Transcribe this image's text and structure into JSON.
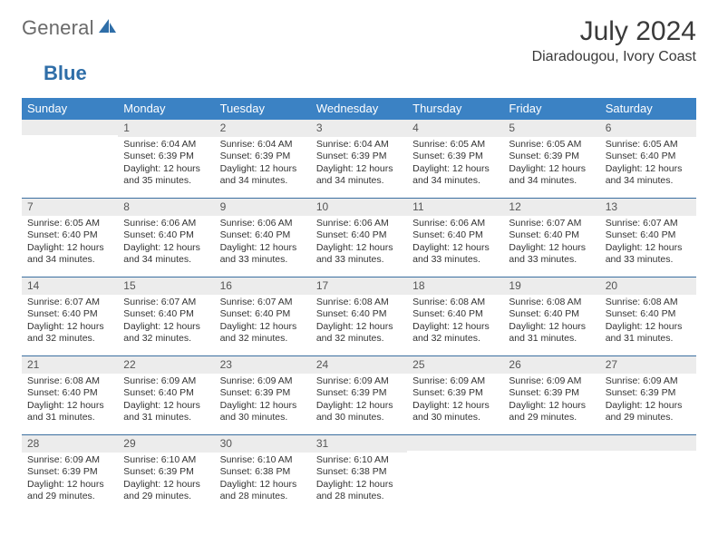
{
  "logo": {
    "text1": "General",
    "text2": "Blue"
  },
  "header": {
    "month_title": "July 2024",
    "location": "Diaradougou, Ivory Coast"
  },
  "colors": {
    "header_blue": "#3b82c4",
    "row_divider": "#3b6fa0",
    "daynum_bg": "#ececec",
    "logo_blue": "#2f6ea8"
  },
  "weekdays": [
    "Sunday",
    "Monday",
    "Tuesday",
    "Wednesday",
    "Thursday",
    "Friday",
    "Saturday"
  ],
  "weeks": [
    [
      {
        "day": "",
        "sunrise": "",
        "sunset": "",
        "daylight": ""
      },
      {
        "day": "1",
        "sunrise": "Sunrise: 6:04 AM",
        "sunset": "Sunset: 6:39 PM",
        "daylight": "Daylight: 12 hours and 35 minutes."
      },
      {
        "day": "2",
        "sunrise": "Sunrise: 6:04 AM",
        "sunset": "Sunset: 6:39 PM",
        "daylight": "Daylight: 12 hours and 34 minutes."
      },
      {
        "day": "3",
        "sunrise": "Sunrise: 6:04 AM",
        "sunset": "Sunset: 6:39 PM",
        "daylight": "Daylight: 12 hours and 34 minutes."
      },
      {
        "day": "4",
        "sunrise": "Sunrise: 6:05 AM",
        "sunset": "Sunset: 6:39 PM",
        "daylight": "Daylight: 12 hours and 34 minutes."
      },
      {
        "day": "5",
        "sunrise": "Sunrise: 6:05 AM",
        "sunset": "Sunset: 6:39 PM",
        "daylight": "Daylight: 12 hours and 34 minutes."
      },
      {
        "day": "6",
        "sunrise": "Sunrise: 6:05 AM",
        "sunset": "Sunset: 6:40 PM",
        "daylight": "Daylight: 12 hours and 34 minutes."
      }
    ],
    [
      {
        "day": "7",
        "sunrise": "Sunrise: 6:05 AM",
        "sunset": "Sunset: 6:40 PM",
        "daylight": "Daylight: 12 hours and 34 minutes."
      },
      {
        "day": "8",
        "sunrise": "Sunrise: 6:06 AM",
        "sunset": "Sunset: 6:40 PM",
        "daylight": "Daylight: 12 hours and 34 minutes."
      },
      {
        "day": "9",
        "sunrise": "Sunrise: 6:06 AM",
        "sunset": "Sunset: 6:40 PM",
        "daylight": "Daylight: 12 hours and 33 minutes."
      },
      {
        "day": "10",
        "sunrise": "Sunrise: 6:06 AM",
        "sunset": "Sunset: 6:40 PM",
        "daylight": "Daylight: 12 hours and 33 minutes."
      },
      {
        "day": "11",
        "sunrise": "Sunrise: 6:06 AM",
        "sunset": "Sunset: 6:40 PM",
        "daylight": "Daylight: 12 hours and 33 minutes."
      },
      {
        "day": "12",
        "sunrise": "Sunrise: 6:07 AM",
        "sunset": "Sunset: 6:40 PM",
        "daylight": "Daylight: 12 hours and 33 minutes."
      },
      {
        "day": "13",
        "sunrise": "Sunrise: 6:07 AM",
        "sunset": "Sunset: 6:40 PM",
        "daylight": "Daylight: 12 hours and 33 minutes."
      }
    ],
    [
      {
        "day": "14",
        "sunrise": "Sunrise: 6:07 AM",
        "sunset": "Sunset: 6:40 PM",
        "daylight": "Daylight: 12 hours and 32 minutes."
      },
      {
        "day": "15",
        "sunrise": "Sunrise: 6:07 AM",
        "sunset": "Sunset: 6:40 PM",
        "daylight": "Daylight: 12 hours and 32 minutes."
      },
      {
        "day": "16",
        "sunrise": "Sunrise: 6:07 AM",
        "sunset": "Sunset: 6:40 PM",
        "daylight": "Daylight: 12 hours and 32 minutes."
      },
      {
        "day": "17",
        "sunrise": "Sunrise: 6:08 AM",
        "sunset": "Sunset: 6:40 PM",
        "daylight": "Daylight: 12 hours and 32 minutes."
      },
      {
        "day": "18",
        "sunrise": "Sunrise: 6:08 AM",
        "sunset": "Sunset: 6:40 PM",
        "daylight": "Daylight: 12 hours and 32 minutes."
      },
      {
        "day": "19",
        "sunrise": "Sunrise: 6:08 AM",
        "sunset": "Sunset: 6:40 PM",
        "daylight": "Daylight: 12 hours and 31 minutes."
      },
      {
        "day": "20",
        "sunrise": "Sunrise: 6:08 AM",
        "sunset": "Sunset: 6:40 PM",
        "daylight": "Daylight: 12 hours and 31 minutes."
      }
    ],
    [
      {
        "day": "21",
        "sunrise": "Sunrise: 6:08 AM",
        "sunset": "Sunset: 6:40 PM",
        "daylight": "Daylight: 12 hours and 31 minutes."
      },
      {
        "day": "22",
        "sunrise": "Sunrise: 6:09 AM",
        "sunset": "Sunset: 6:40 PM",
        "daylight": "Daylight: 12 hours and 31 minutes."
      },
      {
        "day": "23",
        "sunrise": "Sunrise: 6:09 AM",
        "sunset": "Sunset: 6:39 PM",
        "daylight": "Daylight: 12 hours and 30 minutes."
      },
      {
        "day": "24",
        "sunrise": "Sunrise: 6:09 AM",
        "sunset": "Sunset: 6:39 PM",
        "daylight": "Daylight: 12 hours and 30 minutes."
      },
      {
        "day": "25",
        "sunrise": "Sunrise: 6:09 AM",
        "sunset": "Sunset: 6:39 PM",
        "daylight": "Daylight: 12 hours and 30 minutes."
      },
      {
        "day": "26",
        "sunrise": "Sunrise: 6:09 AM",
        "sunset": "Sunset: 6:39 PM",
        "daylight": "Daylight: 12 hours and 29 minutes."
      },
      {
        "day": "27",
        "sunrise": "Sunrise: 6:09 AM",
        "sunset": "Sunset: 6:39 PM",
        "daylight": "Daylight: 12 hours and 29 minutes."
      }
    ],
    [
      {
        "day": "28",
        "sunrise": "Sunrise: 6:09 AM",
        "sunset": "Sunset: 6:39 PM",
        "daylight": "Daylight: 12 hours and 29 minutes."
      },
      {
        "day": "29",
        "sunrise": "Sunrise: 6:10 AM",
        "sunset": "Sunset: 6:39 PM",
        "daylight": "Daylight: 12 hours and 29 minutes."
      },
      {
        "day": "30",
        "sunrise": "Sunrise: 6:10 AM",
        "sunset": "Sunset: 6:38 PM",
        "daylight": "Daylight: 12 hours and 28 minutes."
      },
      {
        "day": "31",
        "sunrise": "Sunrise: 6:10 AM",
        "sunset": "Sunset: 6:38 PM",
        "daylight": "Daylight: 12 hours and 28 minutes."
      },
      {
        "day": "",
        "sunrise": "",
        "sunset": "",
        "daylight": ""
      },
      {
        "day": "",
        "sunrise": "",
        "sunset": "",
        "daylight": ""
      },
      {
        "day": "",
        "sunrise": "",
        "sunset": "",
        "daylight": ""
      }
    ]
  ]
}
